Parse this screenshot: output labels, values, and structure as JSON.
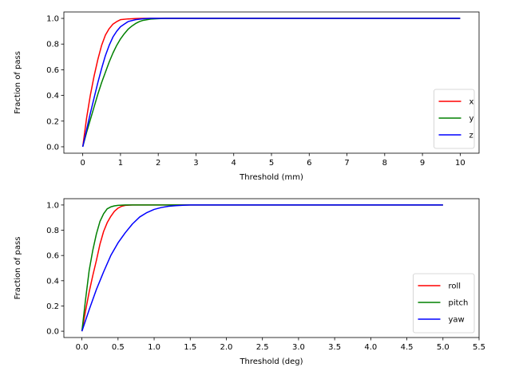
{
  "chart_data": [
    {
      "type": "line",
      "title": "",
      "xlabel": "Threshold (mm)",
      "ylabel": "Fraction of pass",
      "xlim": [
        -0.5,
        10.5
      ],
      "ylim": [
        -0.05,
        1.05
      ],
      "xticks": [
        0,
        1,
        2,
        3,
        4,
        5,
        6,
        7,
        8,
        9,
        10
      ],
      "xtick_labels": [
        "0",
        "1",
        "2",
        "3",
        "4",
        "5",
        "6",
        "7",
        "8",
        "9",
        "10"
      ],
      "yticks": [
        0.0,
        0.2,
        0.4,
        0.6,
        0.8,
        1.0
      ],
      "ytick_labels": [
        "0.0",
        "0.2",
        "0.4",
        "0.6",
        "0.8",
        "1.0"
      ],
      "legend_position": "lower-right",
      "series": [
        {
          "name": "x",
          "color": "#ff0000",
          "x": [
            0,
            0.1,
            0.2,
            0.3,
            0.4,
            0.5,
            0.6,
            0.7,
            0.8,
            0.9,
            1.0,
            1.2,
            1.4,
            1.6,
            2.0,
            10
          ],
          "y": [
            0,
            0.22,
            0.4,
            0.55,
            0.68,
            0.79,
            0.87,
            0.92,
            0.955,
            0.975,
            0.99,
            0.996,
            0.999,
            1.0,
            1.0,
            1.0
          ]
        },
        {
          "name": "y",
          "color": "#008000",
          "x": [
            0,
            0.1,
            0.2,
            0.3,
            0.4,
            0.5,
            0.6,
            0.7,
            0.8,
            0.9,
            1.0,
            1.1,
            1.2,
            1.3,
            1.4,
            1.5,
            1.6,
            1.8,
            2.0,
            2.2,
            10
          ],
          "y": [
            0,
            0.11,
            0.21,
            0.31,
            0.41,
            0.5,
            0.58,
            0.66,
            0.73,
            0.79,
            0.84,
            0.88,
            0.915,
            0.94,
            0.96,
            0.975,
            0.985,
            0.995,
            0.998,
            1.0,
            1.0
          ]
        },
        {
          "name": "z",
          "color": "#0000ff",
          "x": [
            0,
            0.1,
            0.2,
            0.3,
            0.4,
            0.5,
            0.6,
            0.7,
            0.8,
            0.9,
            1.0,
            1.1,
            1.2,
            1.4,
            1.6,
            1.8,
            2.0,
            10
          ],
          "y": [
            0,
            0.13,
            0.26,
            0.38,
            0.5,
            0.61,
            0.71,
            0.79,
            0.855,
            0.9,
            0.935,
            0.955,
            0.975,
            0.99,
            0.997,
            1.0,
            1.0,
            1.0
          ]
        }
      ]
    },
    {
      "type": "line",
      "title": "",
      "xlabel": "Threshold (deg)",
      "ylabel": "Fraction of pass",
      "xlim": [
        -0.25,
        5.5
      ],
      "ylim": [
        -0.05,
        1.05
      ],
      "xticks": [
        0.0,
        0.5,
        1.0,
        1.5,
        2.0,
        2.5,
        3.0,
        3.5,
        4.0,
        4.5,
        5.0,
        5.5
      ],
      "xtick_labels": [
        "0.0",
        "0.5",
        "1.0",
        "1.5",
        "2.0",
        "2.5",
        "3.0",
        "3.5",
        "4.0",
        "4.5",
        "5.0",
        "5.5"
      ],
      "yticks": [
        0.0,
        0.2,
        0.4,
        0.6,
        0.8,
        1.0
      ],
      "ytick_labels": [
        "0.0",
        "0.2",
        "0.4",
        "0.6",
        "0.8",
        "1.0"
      ],
      "legend_position": "lower-right",
      "series": [
        {
          "name": "roll",
          "color": "#ff0000",
          "x": [
            0,
            0.05,
            0.1,
            0.15,
            0.2,
            0.25,
            0.3,
            0.35,
            0.4,
            0.45,
            0.5,
            0.55,
            0.6,
            0.7,
            0.8,
            5.0
          ],
          "y": [
            0,
            0.16,
            0.31,
            0.44,
            0.56,
            0.69,
            0.79,
            0.86,
            0.91,
            0.95,
            0.975,
            0.99,
            0.997,
            1.0,
            1.0,
            1.0
          ]
        },
        {
          "name": "pitch",
          "color": "#008000",
          "x": [
            0,
            0.05,
            0.1,
            0.15,
            0.2,
            0.25,
            0.3,
            0.35,
            0.4,
            0.45,
            0.5,
            0.6,
            5.0
          ],
          "y": [
            0,
            0.25,
            0.48,
            0.64,
            0.77,
            0.87,
            0.93,
            0.97,
            0.985,
            0.993,
            0.997,
            1.0,
            1.0
          ]
        },
        {
          "name": "yaw",
          "color": "#0000ff",
          "x": [
            0,
            0.1,
            0.2,
            0.3,
            0.4,
            0.5,
            0.6,
            0.7,
            0.8,
            0.9,
            1.0,
            1.1,
            1.2,
            1.3,
            1.4,
            1.5,
            1.6,
            5.0
          ],
          "y": [
            0,
            0.17,
            0.33,
            0.47,
            0.6,
            0.7,
            0.78,
            0.85,
            0.905,
            0.94,
            0.965,
            0.98,
            0.99,
            0.995,
            0.998,
            1.0,
            1.0,
            1.0
          ]
        }
      ]
    }
  ]
}
